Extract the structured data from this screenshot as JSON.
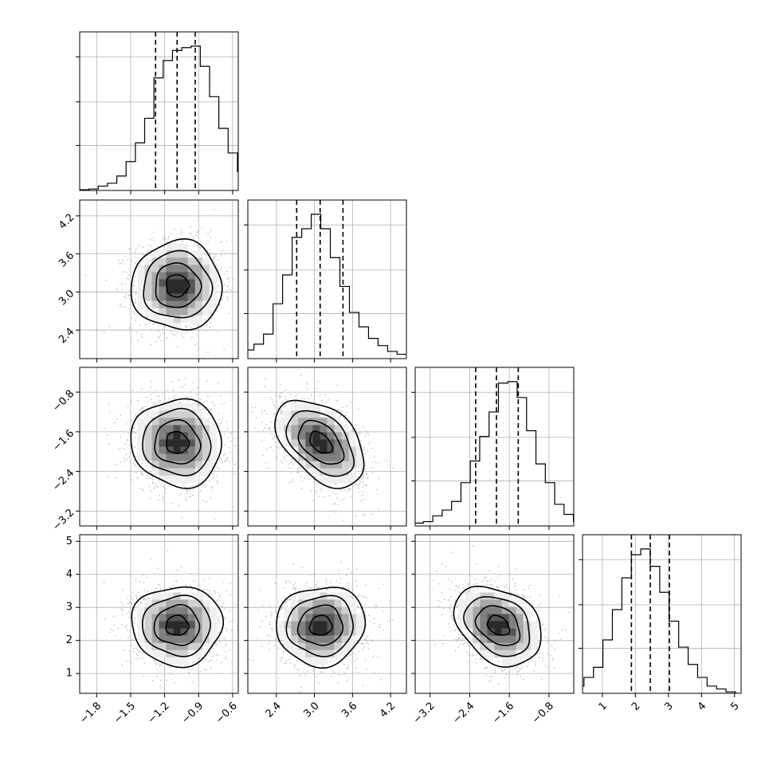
{
  "chart_data": {
    "type": "corner",
    "n_params": 4,
    "grid": true,
    "params": [
      {
        "range": [
          -1.95,
          -0.55
        ],
        "ticks": [
          -1.8,
          -1.5,
          -1.2,
          -0.9,
          -0.6
        ],
        "tick_labels": [
          "−1.8",
          "−1.5",
          "−1.2",
          "−0.9",
          "−0.6"
        ],
        "center": -1.09,
        "sigma": 0.2,
        "quantiles": [
          -1.28,
          -1.09,
          -0.93
        ],
        "hist": [
          0.005,
          0.01,
          0.03,
          0.05,
          0.1,
          0.2,
          0.33,
          0.5,
          0.78,
          0.9,
          0.97,
          0.99,
          1.0,
          0.86,
          0.65,
          0.43,
          0.26,
          0.13,
          0.08,
          0.03,
          0.01
        ]
      },
      {
        "range": [
          1.95,
          4.45
        ],
        "ticks": [
          2.4,
          3.0,
          3.6,
          4.2
        ],
        "tick_labels": [
          "2.4",
          "3.0",
          "3.6",
          "4.2"
        ],
        "center": 3.1,
        "sigma": 0.35,
        "quantiles": [
          2.72,
          3.09,
          3.45
        ],
        "hist": [
          0.01,
          0.03,
          0.06,
          0.1,
          0.17,
          0.38,
          0.58,
          0.84,
          0.9,
          1.0,
          0.9,
          0.7,
          0.5,
          0.32,
          0.22,
          0.14,
          0.09,
          0.05,
          0.03,
          0.01
        ]
      },
      {
        "range": [
          -3.5,
          -0.3
        ],
        "ticks": [
          -3.2,
          -2.4,
          -1.6,
          -0.8
        ],
        "tick_labels": [
          "−3.2",
          "−2.4",
          "−1.6",
          "−0.8"
        ],
        "center": -1.82,
        "sigma": 0.44,
        "quantiles": [
          -2.28,
          -1.86,
          -1.42
        ],
        "hist": [
          0.01,
          0.02,
          0.03,
          0.07,
          0.11,
          0.17,
          0.3,
          0.45,
          0.62,
          0.79,
          0.99,
          1.0,
          0.89,
          0.66,
          0.43,
          0.3,
          0.15,
          0.08,
          0.03,
          0.02
        ]
      },
      {
        "range": [
          0.4,
          5.2
        ],
        "ticks": [
          1,
          2,
          3,
          4,
          5
        ],
        "tick_labels": [
          "1",
          "2",
          "3",
          "4",
          "5"
        ],
        "center": 2.45,
        "sigma": 0.6,
        "quantiles": [
          1.88,
          2.45,
          3.03
        ],
        "hist": [
          0.02,
          0.05,
          0.11,
          0.18,
          0.37,
          0.58,
          0.8,
          0.96,
          1.0,
          0.88,
          0.7,
          0.5,
          0.32,
          0.2,
          0.11,
          0.05,
          0.03,
          0.01
        ]
      }
    ],
    "correlations": [
      {
        "row": 1,
        "col": 0,
        "rho": 0.0
      },
      {
        "row": 2,
        "col": 0,
        "rho": -0.05
      },
      {
        "row": 2,
        "col": 1,
        "rho": -0.45
      },
      {
        "row": 3,
        "col": 0,
        "rho": 0.0
      },
      {
        "row": 3,
        "col": 1,
        "rho": 0.05
      },
      {
        "row": 3,
        "col": 2,
        "rho": -0.3
      }
    ],
    "contour_levels_sigma": [
      0.5,
      1.0,
      1.5,
      2.0
    ],
    "colors": {
      "line": "#000000",
      "grid": "#b0b0b0",
      "points": "#c8c8c8",
      "density": [
        "#ffffff",
        "#f0f0f0",
        "#d0d0d0",
        "#a8a8a8",
        "#808080",
        "#555555",
        "#2a2a2a"
      ]
    }
  }
}
